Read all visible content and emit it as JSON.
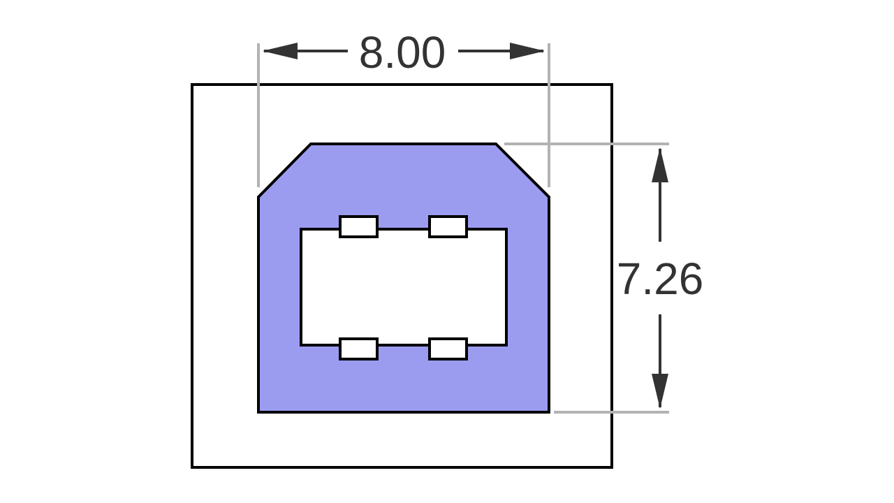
{
  "diagram": {
    "width_label": "8.00",
    "height_label": "7.26",
    "colors": {
      "plug_fill": "#9b9cf0",
      "outline": "#000000",
      "extension_line": "#b3b3b3",
      "dimension": "#333333",
      "background": "#ffffff"
    }
  }
}
